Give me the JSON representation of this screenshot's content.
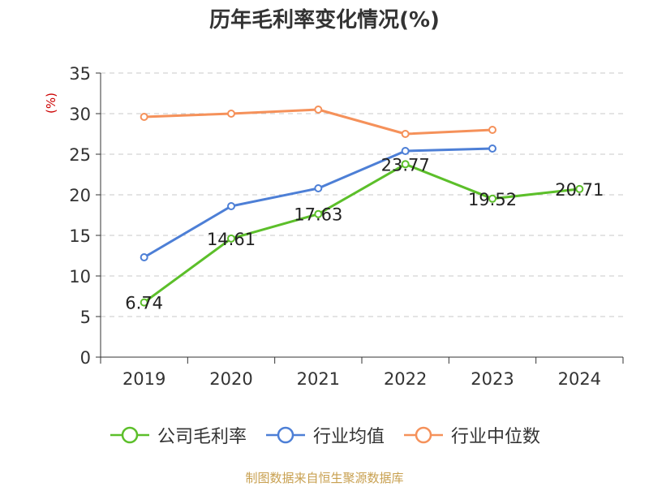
{
  "chart_data": {
    "type": "line",
    "title": "历年毛利率变化情况(%)",
    "ylabel": "(%)",
    "xlabel": "",
    "categories": [
      "2019",
      "2020",
      "2021",
      "2022",
      "2023",
      "2024"
    ],
    "ylim": [
      0,
      35
    ],
    "yticks": [
      0,
      5,
      10,
      15,
      20,
      25,
      30,
      35
    ],
    "grid": true,
    "legend_position": "bottom",
    "series": [
      {
        "name": "公司毛利率",
        "color": "#5cbf2a",
        "values": [
          6.74,
          14.61,
          17.63,
          23.77,
          19.52,
          20.71
        ],
        "labels": [
          "6.74",
          "14.61",
          "17.63",
          "23.77",
          "19.52",
          "20.71"
        ]
      },
      {
        "name": "行业均值",
        "color": "#4d7fd6",
        "values": [
          12.3,
          18.6,
          20.8,
          25.4,
          25.7,
          null
        ]
      },
      {
        "name": "行业中位数",
        "color": "#f5915a",
        "values": [
          29.6,
          30.0,
          30.5,
          27.5,
          28.0,
          null
        ]
      }
    ]
  },
  "source": "制图数据来自恒生聚源数据库"
}
